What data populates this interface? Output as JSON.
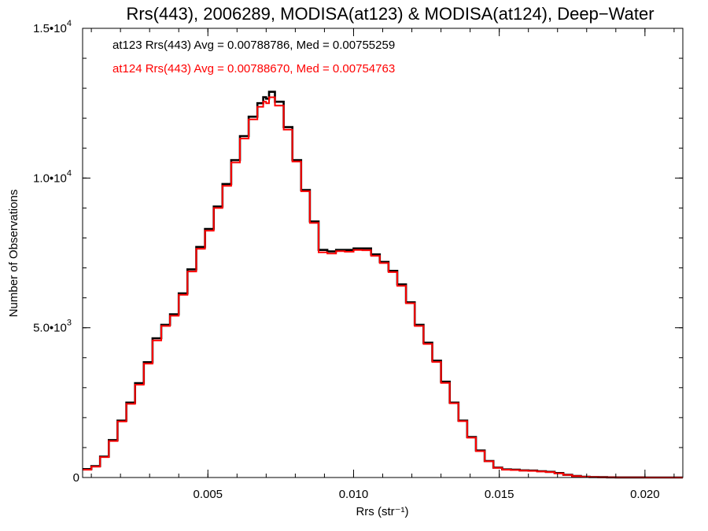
{
  "chart_data": {
    "type": "line",
    "title": "Rrs(443), 2006289, MODISA(at123) & MODISA(at124), Deep−Water",
    "xlabel": "Rrs (str⁻¹)",
    "ylabel": "Number of Observations",
    "xlim": [
      0.0007,
      0.0213
    ],
    "ylim": [
      0,
      15000
    ],
    "x_ticks": [
      {
        "value": 0.005,
        "label": "0.005"
      },
      {
        "value": 0.01,
        "label": "0.010"
      },
      {
        "value": 0.015,
        "label": "0.015"
      },
      {
        "value": 0.02,
        "label": "0.020"
      }
    ],
    "y_ticks": [
      {
        "value": 0,
        "label": "0"
      },
      {
        "value": 5000,
        "label": "5.0•10",
        "exp": "3"
      },
      {
        "value": 10000,
        "label": "1.0•10",
        "exp": "4"
      },
      {
        "value": 15000,
        "label": "1.5•10",
        "exp": "4"
      }
    ],
    "grid": false,
    "annotations": [
      {
        "text": "at123 Rrs(443) Avg = 0.00788786, Med = 0.00755259",
        "color": "#000000"
      },
      {
        "text": "at124 Rrs(443) Avg = 0.00788670, Med = 0.00754763",
        "color": "#ff0000"
      }
    ],
    "series": [
      {
        "color": "#000000",
        "x": [
          0.0007,
          0.001,
          0.0013,
          0.0016,
          0.0019,
          0.0022,
          0.0025,
          0.0028,
          0.0031,
          0.0034,
          0.0037,
          0.004,
          0.0043,
          0.0046,
          0.0049,
          0.0052,
          0.0055,
          0.0058,
          0.0061,
          0.0064,
          0.0067,
          0.0069,
          0.007,
          0.0071,
          0.0073,
          0.0076,
          0.0079,
          0.0082,
          0.0085,
          0.0088,
          0.0091,
          0.0094,
          0.0097,
          0.01,
          0.0103,
          0.0106,
          0.0109,
          0.0112,
          0.0115,
          0.0118,
          0.0121,
          0.0124,
          0.0127,
          0.013,
          0.0133,
          0.0136,
          0.0139,
          0.0142,
          0.0145,
          0.0148,
          0.0151,
          0.0154,
          0.0157,
          0.016,
          0.0163,
          0.0166,
          0.0169,
          0.0172,
          0.0175,
          0.0178,
          0.0181,
          0.0184,
          0.0187,
          0.019,
          0.0195,
          0.02,
          0.0205,
          0.0213
        ],
        "y": [
          280,
          380,
          700,
          1250,
          1900,
          2500,
          3150,
          3850,
          4650,
          5100,
          5450,
          6150,
          6950,
          7700,
          8300,
          9050,
          9800,
          10600,
          11400,
          12050,
          12500,
          12700,
          12650,
          12880,
          12550,
          11700,
          10600,
          9600,
          8550,
          7600,
          7550,
          7600,
          7600,
          7650,
          7650,
          7450,
          7200,
          6900,
          6450,
          5850,
          5100,
          4500,
          3900,
          3200,
          2500,
          1900,
          1350,
          900,
          550,
          330,
          270,
          260,
          240,
          230,
          210,
          190,
          150,
          90,
          50,
          25,
          15,
          10,
          5,
          3,
          2,
          1,
          0,
          0
        ]
      },
      {
        "color": "#ff0000",
        "x": [
          0.0007,
          0.001,
          0.0013,
          0.0016,
          0.0019,
          0.0022,
          0.0025,
          0.0028,
          0.0031,
          0.0034,
          0.0037,
          0.004,
          0.0043,
          0.0046,
          0.0049,
          0.0052,
          0.0055,
          0.0058,
          0.0061,
          0.0064,
          0.0067,
          0.0069,
          0.007,
          0.0071,
          0.0073,
          0.0076,
          0.0079,
          0.0082,
          0.0085,
          0.0088,
          0.0091,
          0.0094,
          0.0097,
          0.01,
          0.0103,
          0.0106,
          0.0109,
          0.0112,
          0.0115,
          0.0118,
          0.0121,
          0.0124,
          0.0127,
          0.013,
          0.0133,
          0.0136,
          0.0139,
          0.0142,
          0.0145,
          0.0148,
          0.0151,
          0.0154,
          0.0157,
          0.016,
          0.0163,
          0.0166,
          0.0169,
          0.0172,
          0.0175,
          0.0178,
          0.0181,
          0.0184,
          0.0187,
          0.019,
          0.0195,
          0.02,
          0.0205,
          0.0213
        ],
        "y": [
          260,
          360,
          680,
          1220,
          1870,
          2460,
          3100,
          3800,
          4580,
          5060,
          5400,
          6100,
          6880,
          7640,
          8240,
          9000,
          9740,
          10520,
          11320,
          11960,
          12380,
          12550,
          12500,
          12700,
          12420,
          11620,
          10550,
          9560,
          8500,
          7520,
          7480,
          7560,
          7540,
          7600,
          7590,
          7400,
          7160,
          6860,
          6400,
          5820,
          5060,
          4460,
          3860,
          3160,
          2480,
          1880,
          1330,
          880,
          540,
          320,
          260,
          250,
          230,
          220,
          200,
          180,
          140,
          85,
          48,
          24,
          14,
          9,
          5,
          3,
          2,
          1,
          0,
          0
        ]
      }
    ]
  }
}
